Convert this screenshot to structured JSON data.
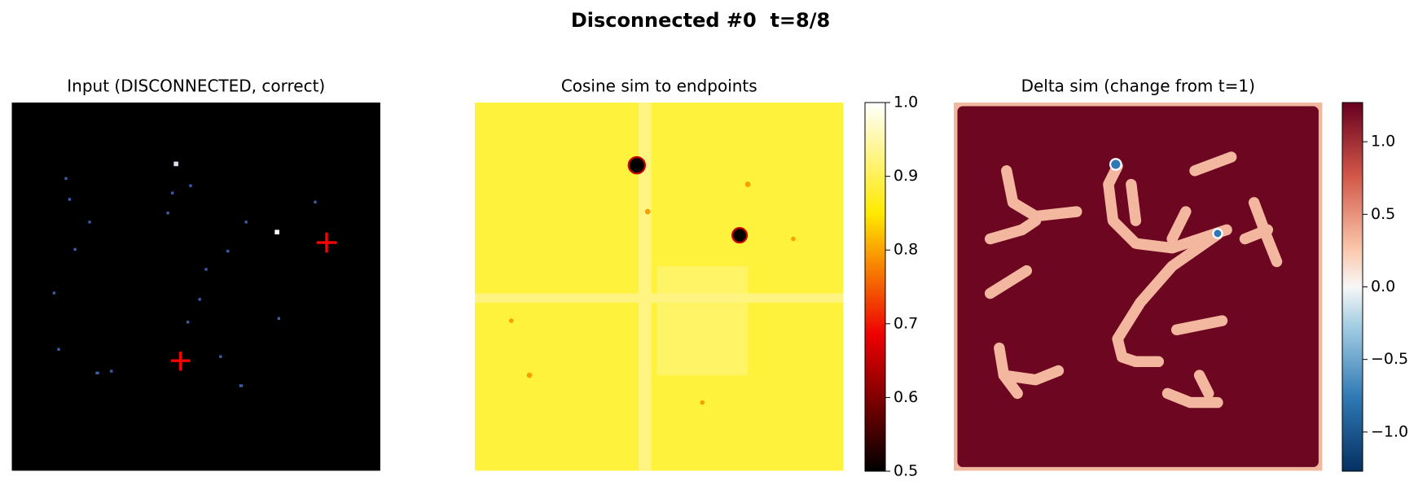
{
  "title": "Disconnected #0  t=8/8",
  "chart_data": [
    {
      "type": "image",
      "title": "Input (DISCONNECTED, correct)"
    },
    {
      "type": "heatmap",
      "title": "Cosine sim to endpoints",
      "colorbar": {
        "colormap": "hot",
        "ylim": [
          0.5,
          1.0
        ],
        "yticks": [
          0.5,
          0.6,
          0.7,
          0.8,
          0.9,
          {
            "value": 1,
            "label": "1.0"
          }
        ]
      }
    },
    {
      "type": "heatmap",
      "title": "Delta sim (change from t=1)",
      "colorbar": {
        "colormap": "RdBu_r",
        "ylim": [
          -1.27,
          1.27
        ],
        "yticks": [
          {
            "value": -1,
            "label": "−1.0"
          },
          {
            "value": -0.5,
            "label": "−0.5"
          },
          {
            "value": 0,
            "label": "0.0"
          },
          0.5,
          {
            "value": 1,
            "label": "1.0"
          }
        ]
      }
    }
  ]
}
